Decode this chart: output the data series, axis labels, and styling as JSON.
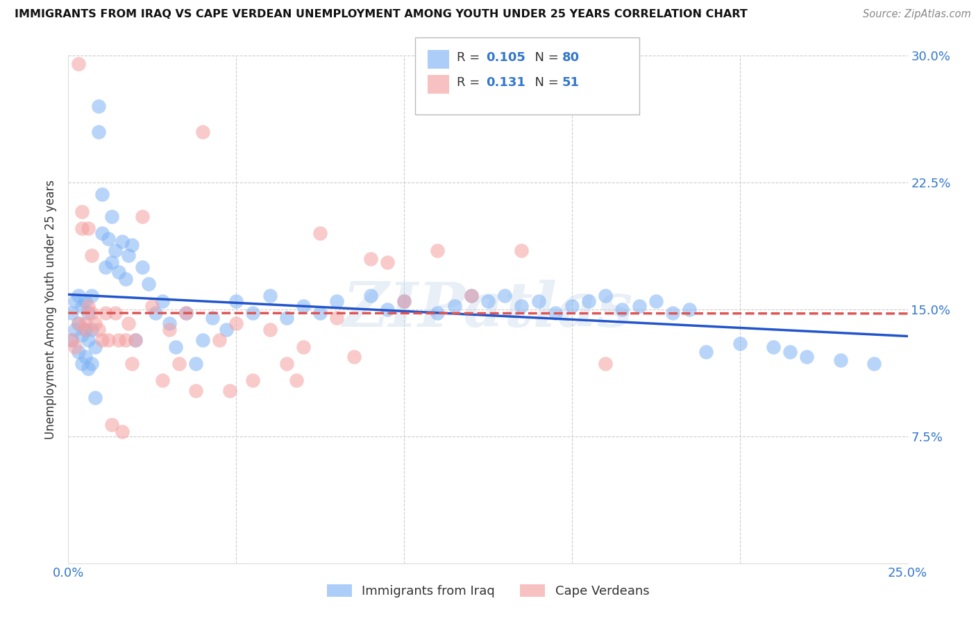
{
  "title": "IMMIGRANTS FROM IRAQ VS CAPE VERDEAN UNEMPLOYMENT AMONG YOUTH UNDER 25 YEARS CORRELATION CHART",
  "source": "Source: ZipAtlas.com",
  "ylabel": "Unemployment Among Youth under 25 years",
  "x_min": 0.0,
  "x_max": 0.25,
  "y_min": 0.0,
  "y_max": 0.3,
  "y_ticks": [
    0.0,
    0.075,
    0.15,
    0.225,
    0.3
  ],
  "y_tick_labels": [
    "",
    "7.5%",
    "15.0%",
    "22.5%",
    "30.0%"
  ],
  "legend_iraq_label": "Immigrants from Iraq",
  "legend_cv_label": "Cape Verdeans",
  "legend_iraq_R": "0.105",
  "legend_iraq_N": "80",
  "legend_cv_R": "0.131",
  "legend_cv_N": "51",
  "iraq_color": "#7EB3F5",
  "cv_color": "#F5A0A0",
  "iraq_line_color": "#2255CC",
  "cv_line_color": "#DD5555",
  "watermark": "ZIPatlas",
  "iraq_x": [
    0.001,
    0.001,
    0.002,
    0.002,
    0.003,
    0.003,
    0.003,
    0.004,
    0.004,
    0.004,
    0.005,
    0.005,
    0.005,
    0.006,
    0.006,
    0.006,
    0.007,
    0.007,
    0.007,
    0.008,
    0.008,
    0.009,
    0.009,
    0.01,
    0.01,
    0.011,
    0.012,
    0.013,
    0.013,
    0.014,
    0.015,
    0.016,
    0.017,
    0.018,
    0.019,
    0.02,
    0.022,
    0.024,
    0.026,
    0.028,
    0.03,
    0.032,
    0.035,
    0.038,
    0.04,
    0.043,
    0.047,
    0.05,
    0.055,
    0.06,
    0.065,
    0.07,
    0.075,
    0.08,
    0.09,
    0.095,
    0.1,
    0.11,
    0.115,
    0.12,
    0.125,
    0.13,
    0.135,
    0.14,
    0.145,
    0.15,
    0.155,
    0.16,
    0.165,
    0.17,
    0.175,
    0.18,
    0.185,
    0.19,
    0.2,
    0.21,
    0.215,
    0.22,
    0.23,
    0.24
  ],
  "iraq_y": [
    0.132,
    0.148,
    0.138,
    0.155,
    0.125,
    0.142,
    0.158,
    0.118,
    0.135,
    0.152,
    0.122,
    0.138,
    0.155,
    0.115,
    0.132,
    0.148,
    0.118,
    0.138,
    0.158,
    0.128,
    0.098,
    0.255,
    0.27,
    0.218,
    0.195,
    0.175,
    0.192,
    0.205,
    0.178,
    0.185,
    0.172,
    0.19,
    0.168,
    0.182,
    0.188,
    0.132,
    0.175,
    0.165,
    0.148,
    0.155,
    0.142,
    0.128,
    0.148,
    0.118,
    0.132,
    0.145,
    0.138,
    0.155,
    0.148,
    0.158,
    0.145,
    0.152,
    0.148,
    0.155,
    0.158,
    0.15,
    0.155,
    0.148,
    0.152,
    0.158,
    0.155,
    0.158,
    0.152,
    0.155,
    0.148,
    0.152,
    0.155,
    0.158,
    0.15,
    0.152,
    0.155,
    0.148,
    0.15,
    0.125,
    0.13,
    0.128,
    0.125,
    0.122,
    0.12,
    0.118
  ],
  "cv_x": [
    0.001,
    0.002,
    0.003,
    0.003,
    0.004,
    0.004,
    0.005,
    0.005,
    0.006,
    0.006,
    0.007,
    0.007,
    0.008,
    0.009,
    0.01,
    0.011,
    0.012,
    0.013,
    0.014,
    0.015,
    0.016,
    0.017,
    0.018,
    0.019,
    0.02,
    0.022,
    0.025,
    0.028,
    0.03,
    0.033,
    0.035,
    0.038,
    0.04,
    0.045,
    0.048,
    0.05,
    0.055,
    0.06,
    0.065,
    0.068,
    0.07,
    0.075,
    0.08,
    0.085,
    0.09,
    0.095,
    0.1,
    0.11,
    0.12,
    0.135,
    0.16
  ],
  "cv_y": [
    0.132,
    0.128,
    0.295,
    0.142,
    0.198,
    0.208,
    0.138,
    0.142,
    0.198,
    0.152,
    0.182,
    0.148,
    0.142,
    0.138,
    0.132,
    0.148,
    0.132,
    0.082,
    0.148,
    0.132,
    0.078,
    0.132,
    0.142,
    0.118,
    0.132,
    0.205,
    0.152,
    0.108,
    0.138,
    0.118,
    0.148,
    0.102,
    0.255,
    0.132,
    0.102,
    0.142,
    0.108,
    0.138,
    0.118,
    0.108,
    0.128,
    0.195,
    0.145,
    0.122,
    0.18,
    0.178,
    0.155,
    0.185,
    0.158,
    0.185,
    0.118
  ]
}
